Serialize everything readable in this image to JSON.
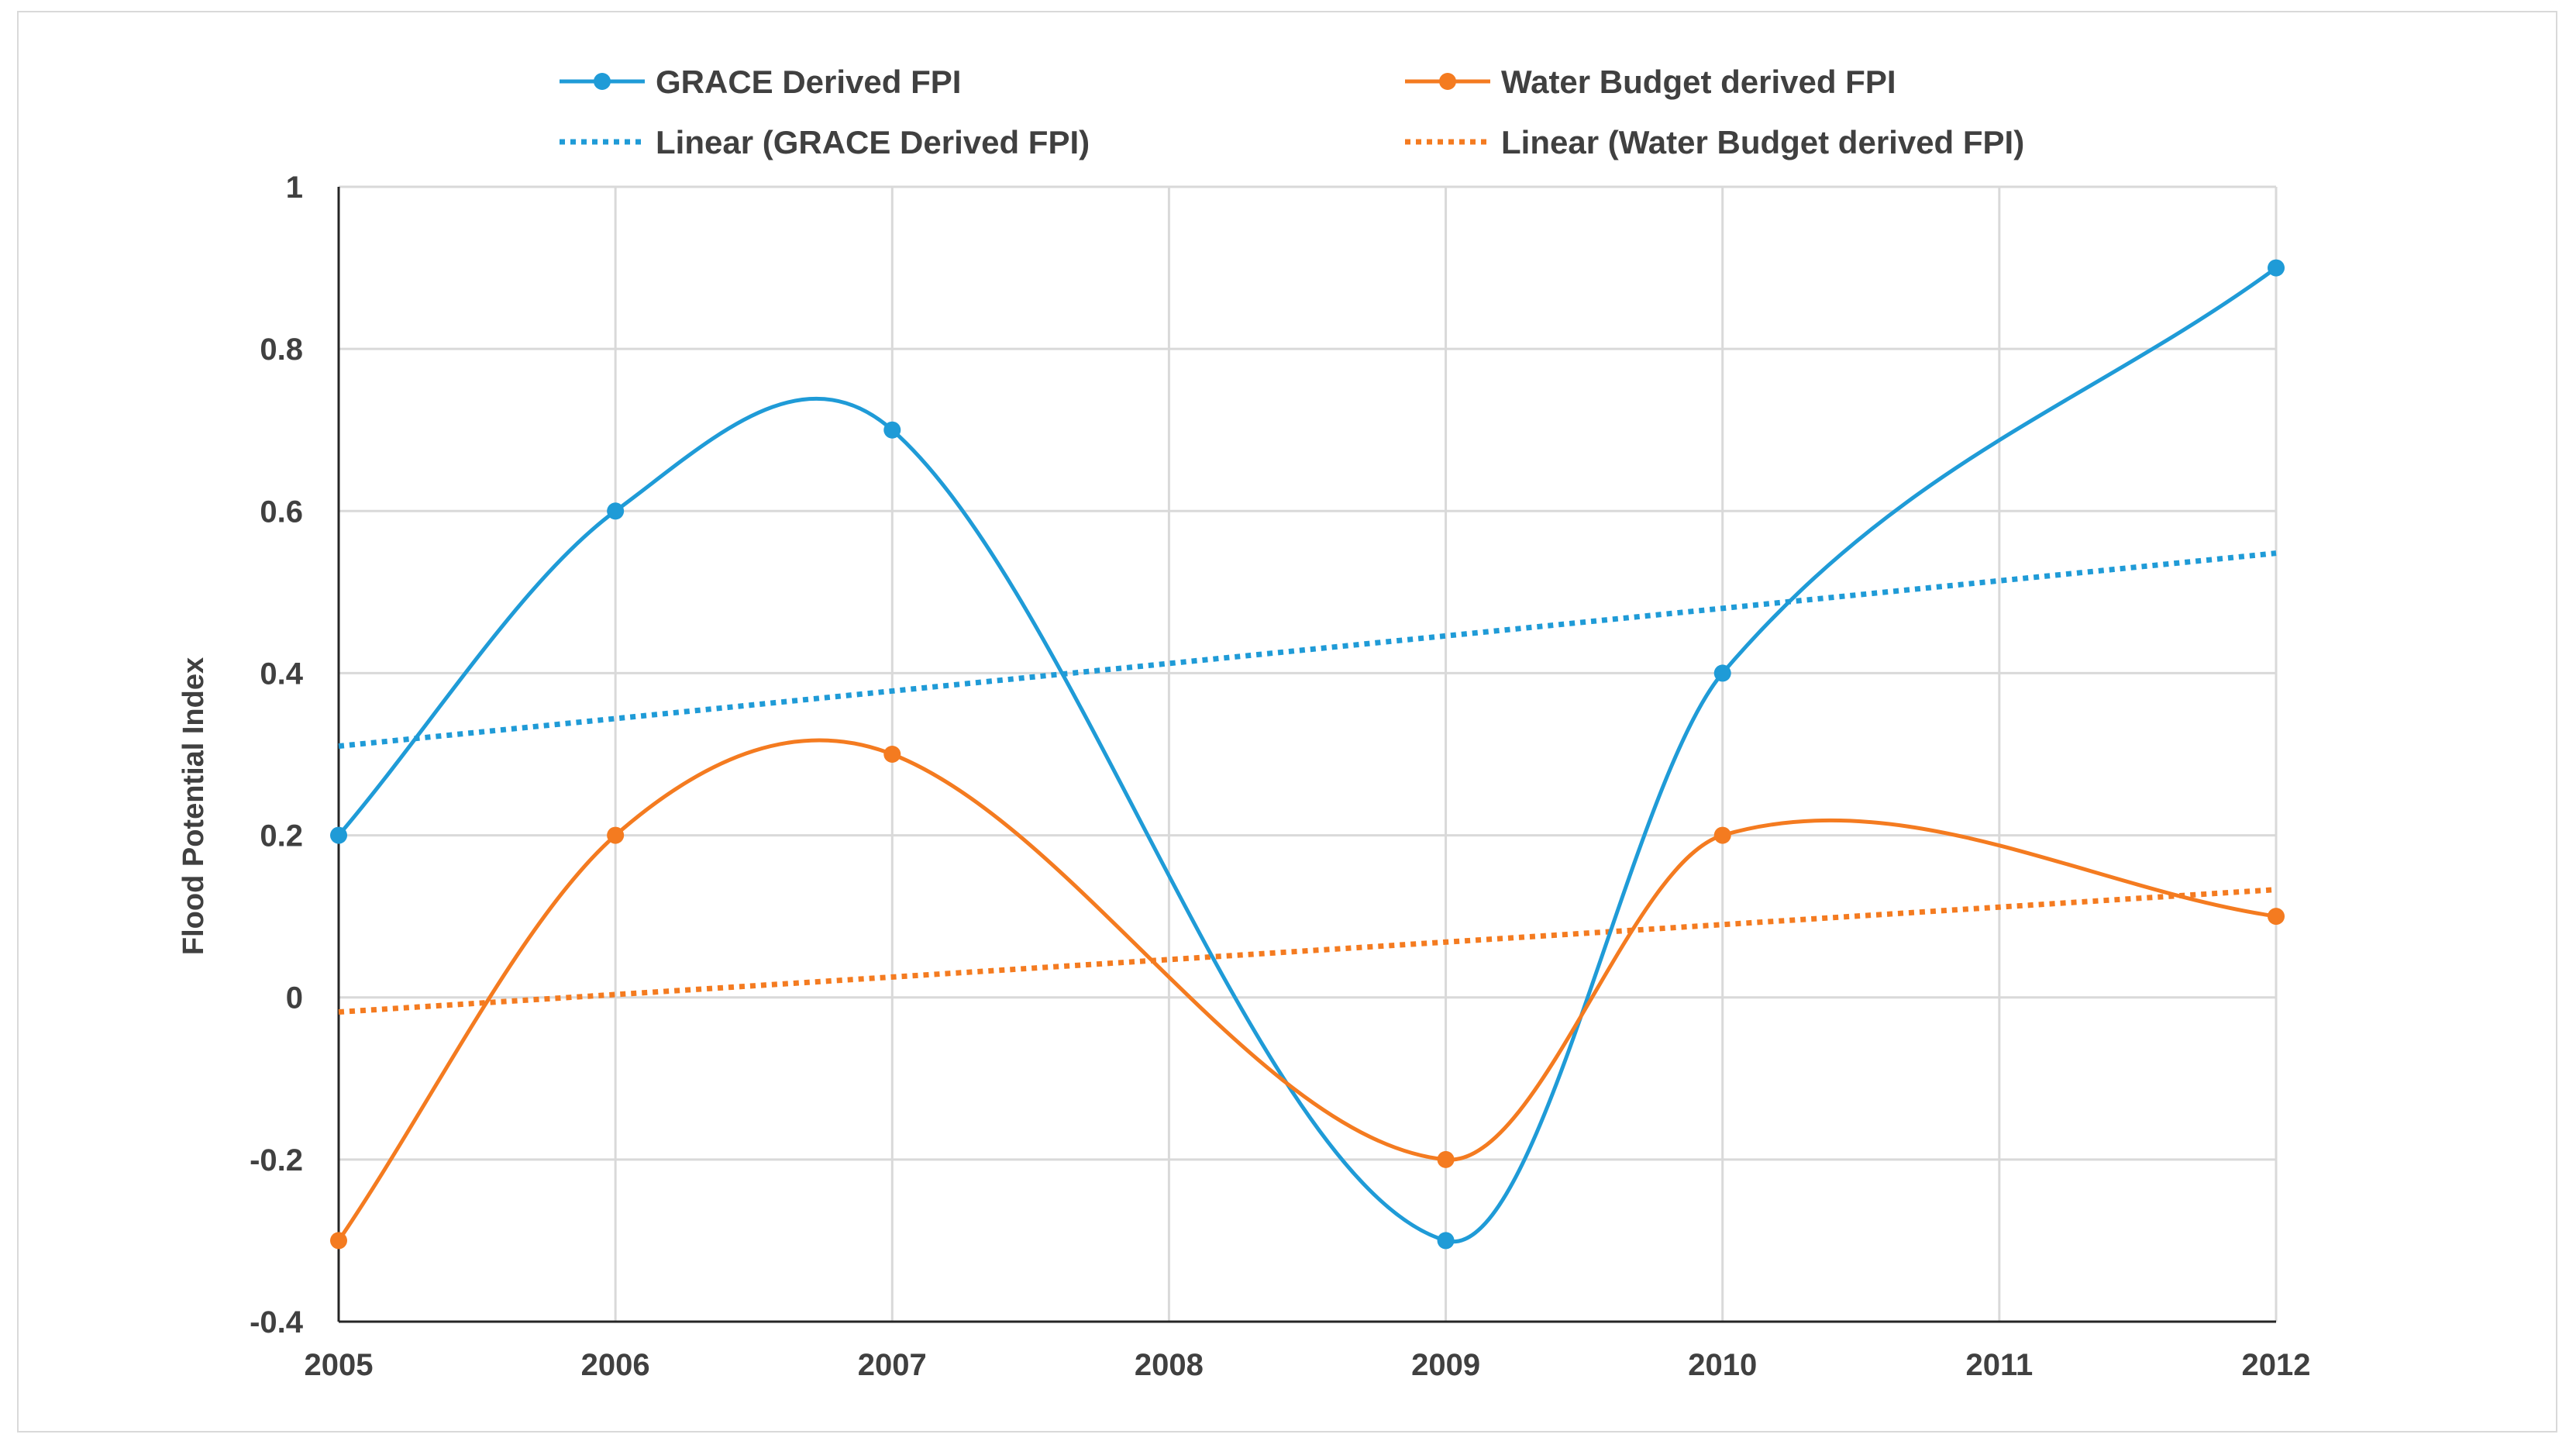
{
  "chart_data": {
    "type": "line",
    "title": "",
    "xlabel": "",
    "ylabel": "Flood Potential Index",
    "x": [
      2005,
      2006,
      2007,
      2008,
      2009,
      2010,
      2011,
      2012
    ],
    "x_tick_labels": [
      "2005",
      "2006",
      "2007",
      "2008",
      "2009",
      "2010",
      "2011",
      "2012"
    ],
    "xlim": [
      2005,
      2012
    ],
    "ylim": [
      -0.4,
      1
    ],
    "y_ticks": [
      -0.4,
      -0.2,
      0,
      0.2,
      0.4,
      0.6,
      0.8,
      1
    ],
    "y_tick_labels": [
      "-0.4",
      "-0.2",
      "0",
      "0.2",
      "0.4",
      "0.6",
      "0.8",
      "1"
    ],
    "grid": true,
    "legend_position": "top",
    "series": [
      {
        "name": "GRACE Derived FPI",
        "color": "#1f9bd7",
        "smooth": true,
        "points": [
          [
            2005,
            0.2
          ],
          [
            2006,
            0.6
          ],
          [
            2007,
            0.7
          ],
          [
            2009,
            -0.3
          ],
          [
            2010,
            0.4
          ],
          [
            2012,
            0.9
          ]
        ]
      },
      {
        "name": "Water Budget derived FPI",
        "color": "#f47b20",
        "smooth": true,
        "points": [
          [
            2005,
            -0.3
          ],
          [
            2006,
            0.2
          ],
          [
            2007,
            0.3
          ],
          [
            2009,
            -0.2
          ],
          [
            2010,
            0.2
          ],
          [
            2012,
            0.1
          ]
        ]
      }
    ],
    "trendlines": [
      {
        "name": "Linear (GRACE Derived FPI)",
        "color": "#1f9bd7",
        "from": [
          2005,
          0.31
        ],
        "to": [
          2012,
          0.548
        ]
      },
      {
        "name": "Linear (Water Budget derived FPI)",
        "color": "#f47b20",
        "from": [
          2005,
          -0.018
        ],
        "to": [
          2012,
          0.133
        ]
      }
    ]
  }
}
